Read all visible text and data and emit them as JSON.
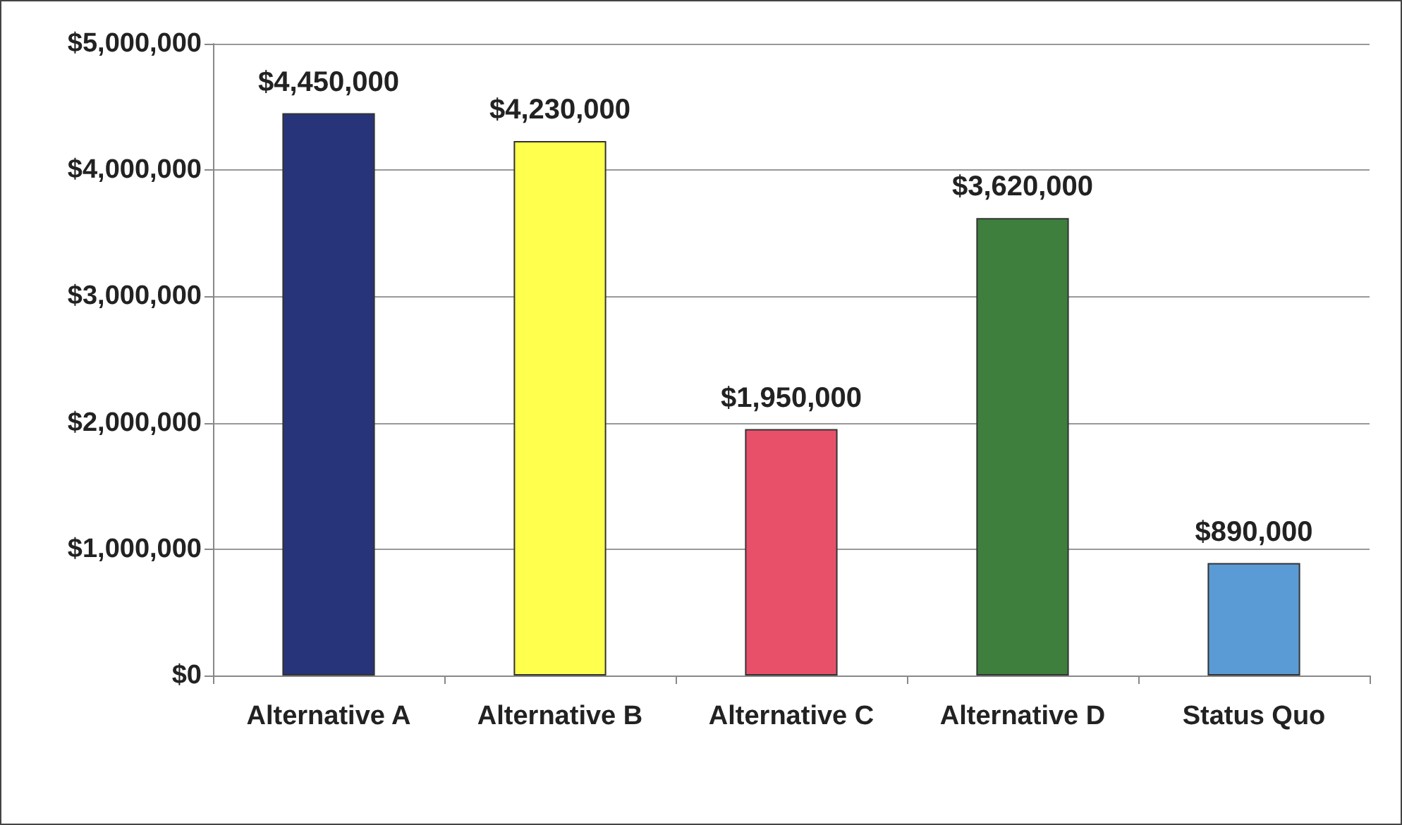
{
  "chart_data": {
    "type": "bar",
    "categories": [
      "Alternative A",
      "Alternative B",
      "Alternative C",
      "Alternative D",
      "Status Quo"
    ],
    "values": [
      4450000,
      4230000,
      1950000,
      3620000,
      890000
    ],
    "colors": [
      "#27347a",
      "#ffff4d",
      "#e8506a",
      "#3e7f3e",
      "#5b9bd5"
    ],
    "value_labels": [
      "$4,450,000",
      "$4,230,000",
      "$1,950,000",
      "$3,620,000",
      "$890,000"
    ],
    "ylim": [
      0,
      5000000
    ],
    "yticks": [
      {
        "value": 0,
        "label": "$0"
      },
      {
        "value": 1000000,
        "label": "$1,000,000"
      },
      {
        "value": 2000000,
        "label": "$2,000,000"
      },
      {
        "value": 3000000,
        "label": "$3,000,000"
      },
      {
        "value": 4000000,
        "label": "$4,000,000"
      },
      {
        "value": 5000000,
        "label": "$5,000,000"
      }
    ],
    "grid": "y"
  }
}
